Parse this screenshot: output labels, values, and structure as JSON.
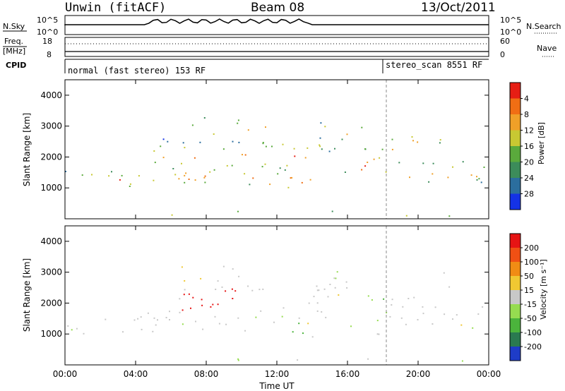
{
  "header": {
    "station": "Unwin (fitACF)",
    "beam": "Beam 08",
    "date": "13/Oct/2011"
  },
  "noise_panel": {
    "left_label": "N.Sky",
    "right_label": "N.Search",
    "left_ticks": [
      "10^5",
      "10^0"
    ],
    "right_ticks": [
      "10^5",
      "10^0"
    ]
  },
  "freq_panel": {
    "left_label_1": "Freq.",
    "left_label_2": "[MHz]",
    "right_label": "Nave",
    "left_ticks": [
      "18",
      "8"
    ],
    "right_ticks": [
      "60",
      "0"
    ]
  },
  "cpid": {
    "label": "CPID",
    "modes": [
      {
        "text": "normal (fast stereo) 153 RF",
        "start": "00:00",
        "end": "18:10"
      },
      {
        "text": "stereo_scan 8551 RF",
        "start": "18:10",
        "end": "24:00"
      }
    ]
  },
  "chart_data": [
    {
      "type": "heatmap",
      "quantity": "Power",
      "ylabel": "Slant Range [km]",
      "ylim": [
        0,
        4500
      ],
      "yticks": [
        1000,
        2000,
        3000,
        4000
      ],
      "xlim": [
        "00:00",
        "24:00"
      ],
      "colorbar": {
        "label": "Power [dB]",
        "range": [
          0,
          32
        ],
        "ticks": [
          "4",
          "8",
          "12",
          "16",
          "20",
          "24",
          "28"
        ],
        "colors": [
          "#1432e6",
          "#2b6e9e",
          "#3c8c5a",
          "#5aaa3c",
          "#c8c832",
          "#f0a028",
          "#f06e14",
          "#e61e14"
        ]
      }
    },
    {
      "type": "heatmap",
      "quantity": "Velocity",
      "ylabel": "Slant Range [km]",
      "ylim": [
        0,
        4500
      ],
      "yticks": [
        1000,
        2000,
        3000,
        4000
      ],
      "xlim": [
        "00:00",
        "24:00"
      ],
      "colorbar": {
        "label": "Velocity [m s⁻¹]",
        "range": [
          -250,
          250
        ],
        "ticks": [
          "200",
          "100",
          "50",
          "15",
          "-15",
          "-50",
          "-100",
          "-200"
        ],
        "colors": [
          "#1e3cc8",
          "#2a7a50",
          "#4bb43c",
          "#96dc50",
          "#c8c8c8",
          "#f0c832",
          "#f08c14",
          "#f05014",
          "#e61414"
        ]
      }
    }
  ],
  "xaxis": {
    "ticks": [
      "00:00",
      "04:00",
      "08:00",
      "12:00",
      "16:00",
      "20:00",
      "00:00"
    ],
    "label": "Time UT"
  }
}
